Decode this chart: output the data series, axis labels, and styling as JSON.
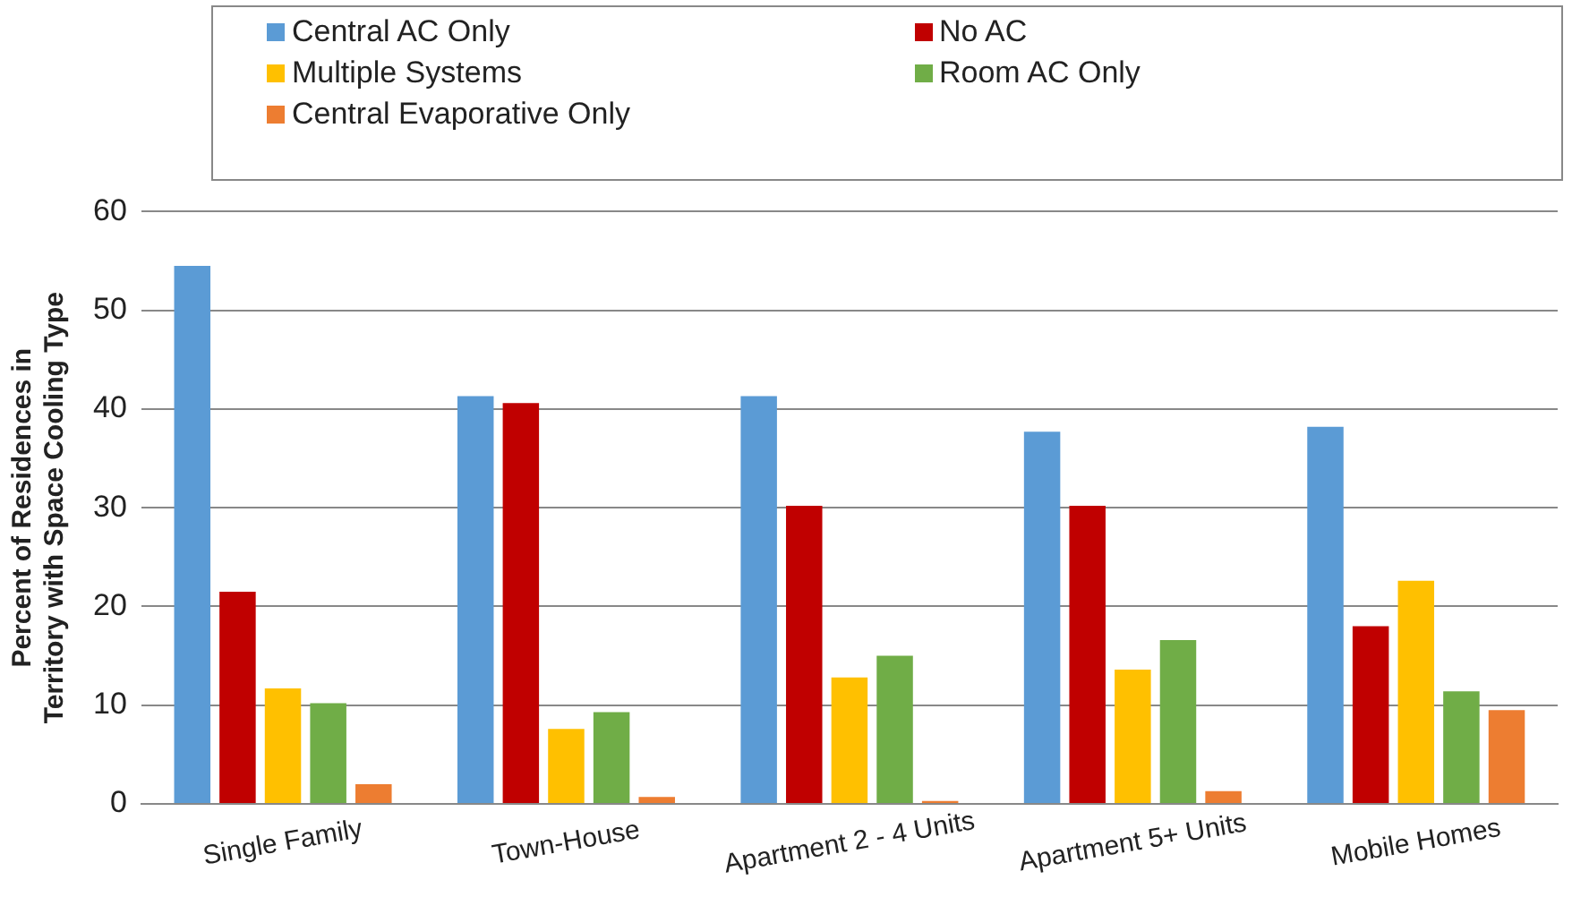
{
  "chart_data": {
    "type": "bar",
    "ylabel": "Percent of Residences in Territory with Space Cooling Type",
    "categories": [
      "Single Family",
      "Town-House",
      "Apartment 2 - 4 Units",
      "Apartment 5+ Units",
      "Mobile Homes"
    ],
    "series": [
      {
        "name": "Central AC Only",
        "color": "#5b9bd5",
        "values": [
          54.5,
          41.3,
          41.3,
          37.7,
          38.2
        ]
      },
      {
        "name": "No AC",
        "color": "#c00000",
        "values": [
          21.5,
          40.6,
          30.2,
          30.2,
          18
        ]
      },
      {
        "name": "Multiple Systems",
        "color": "#ffc000",
        "values": [
          11.7,
          7.6,
          12.8,
          13.6,
          22.6
        ]
      },
      {
        "name": "Room AC Only",
        "color": "#70ad47",
        "values": [
          10.2,
          9.3,
          15,
          16.6,
          11.4
        ]
      },
      {
        "name": "Central Evaporative Only",
        "color": "#ed7d31",
        "values": [
          2,
          0.7,
          0.3,
          1.3,
          9.5
        ]
      }
    ],
    "ylim": [
      0,
      60
    ],
    "yticks": [
      0,
      10,
      20,
      30,
      40,
      50,
      60
    ],
    "grid": "y",
    "legend": "top"
  }
}
